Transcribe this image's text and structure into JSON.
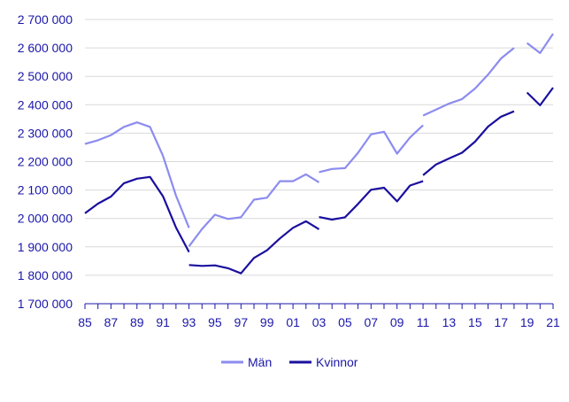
{
  "chart_data": {
    "type": "line",
    "title": "",
    "xlabel": "",
    "ylabel": "",
    "ylim": [
      1700000,
      2700000
    ],
    "y_ticks": [
      1700000,
      1800000,
      1900000,
      2000000,
      2100000,
      2200000,
      2300000,
      2400000,
      2500000,
      2600000,
      2700000
    ],
    "y_tick_labels": [
      "1 700 000",
      "1 800 000",
      "1 900 000",
      "2 000 000",
      "2 100 000",
      "2 200 000",
      "2 300 000",
      "2 400 000",
      "2 500 000",
      "2 600 000",
      "2 700 000"
    ],
    "x": [
      1985,
      1986,
      1987,
      1988,
      1989,
      1990,
      1991,
      1992,
      1993,
      1994,
      1995,
      1996,
      1997,
      1998,
      1999,
      2000,
      2001,
      2002,
      2003,
      2004,
      2005,
      2006,
      2007,
      2008,
      2009,
      2010,
      2011,
      2012,
      2013,
      2014,
      2015,
      2016,
      2017,
      2018,
      2019,
      2020,
      2021
    ],
    "xlim": [
      1985,
      2021
    ],
    "x_ticks": [
      1985,
      1987,
      1989,
      1991,
      1993,
      1995,
      1997,
      1999,
      2001,
      2003,
      2005,
      2007,
      2009,
      2011,
      2013,
      2015,
      2017,
      2019,
      2021
    ],
    "x_tick_labels": [
      "85",
      "87",
      "89",
      "91",
      "93",
      "95",
      "97",
      "99",
      "01",
      "03",
      "05",
      "07",
      "09",
      "11",
      "13",
      "15",
      "17",
      "19",
      "21"
    ],
    "grid": true,
    "legend": "bottom",
    "series": [
      {
        "name": "Män",
        "color": "#8c8cf0",
        "segments": [
          {
            "x": [
              1985,
              1986,
              1987,
              1988,
              1989,
              1990,
              1991,
              1992,
              1993
            ],
            "values": [
              2262000,
              2275000,
              2293000,
              2322000,
              2338000,
              2322000,
              2220000,
              2080000,
              1967000
            ]
          },
          {
            "x": [
              1993,
              1994,
              1995,
              1996,
              1997,
              1998,
              1999,
              2000,
              2001,
              2002,
              2003
            ],
            "values": [
              1902000,
              1963000,
              2013000,
              1998000,
              2004000,
              2066000,
              2073000,
              2131000,
              2131000,
              2155000,
              2127000
            ]
          },
          {
            "x": [
              2003,
              2004,
              2005,
              2006,
              2007,
              2008,
              2009,
              2010,
              2011
            ],
            "values": [
              2163000,
              2174000,
              2177000,
              2231000,
              2296000,
              2305000,
              2228000,
              2285000,
              2328000
            ]
          },
          {
            "x": [
              2011,
              2012,
              2013,
              2014,
              2015,
              2016,
              2017,
              2018
            ],
            "values": [
              2362000,
              2383000,
              2404000,
              2420000,
              2457000,
              2506000,
              2563000,
              2600000
            ]
          },
          {
            "x": [
              2019,
              2020,
              2021
            ],
            "values": [
              2617000,
              2582000,
              2650000
            ]
          }
        ]
      },
      {
        "name": "Kvinnor",
        "color": "#1a0f9e",
        "segments": [
          {
            "x": [
              1985,
              1986,
              1987,
              1988,
              1989,
              1990,
              1991,
              1992,
              1993
            ],
            "values": [
              2018000,
              2052000,
              2077000,
              2124000,
              2140000,
              2146000,
              2078000,
              1968000,
              1882000
            ]
          },
          {
            "x": [
              1993,
              1994,
              1995,
              1996,
              1997,
              1998,
              1999,
              2000,
              2001,
              2002,
              2003
            ],
            "values": [
              1836000,
              1833000,
              1835000,
              1825000,
              1807000,
              1861000,
              1888000,
              1930000,
              1967000,
              1990000,
              1962000
            ]
          },
          {
            "x": [
              2003,
              2004,
              2005,
              2006,
              2007,
              2008,
              2009,
              2010,
              2011
            ],
            "values": [
              2005000,
              1996000,
              2004000,
              2051000,
              2101000,
              2108000,
              2060000,
              2116000,
              2131000
            ]
          },
          {
            "x": [
              2011,
              2012,
              2013,
              2014,
              2015,
              2016,
              2017,
              2018
            ],
            "values": [
              2152000,
              2190000,
              2211000,
              2231000,
              2270000,
              2323000,
              2358000,
              2377000
            ]
          },
          {
            "x": [
              2019,
              2020,
              2021
            ],
            "values": [
              2443000,
              2398000,
              2460000
            ]
          }
        ]
      }
    ]
  }
}
